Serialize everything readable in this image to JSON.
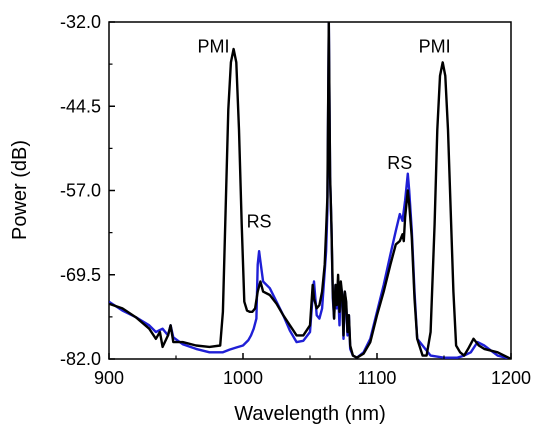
{
  "chart_data": {
    "type": "line",
    "xlabel": "Wavelength (nm)",
    "ylabel": "Power (dB)",
    "xlim": [
      900,
      1200
    ],
    "ylim": [
      -82.0,
      -32.0
    ],
    "x_ticks": [
      900,
      1000,
      1100,
      1200
    ],
    "y_ticks": [
      -82.0,
      -69.5,
      -57.0,
      -44.5,
      -32.0
    ],
    "x_tick_labels": [
      "900",
      "1000",
      "1100",
      "1200"
    ],
    "y_tick_labels": [
      "-82.0",
      "-69.5",
      "-57.0",
      "-44.5",
      "-32.0"
    ],
    "grid": false,
    "annotations": [
      {
        "text": "PMI",
        "x": 978,
        "y": -36.5
      },
      {
        "text": "RS",
        "x": 1012,
        "y": -62.5
      },
      {
        "text": "RS",
        "x": 1117,
        "y": -53.8
      },
      {
        "text": "PMI",
        "x": 1143,
        "y": -36.5
      }
    ],
    "series": [
      {
        "color": "#1f1fd6",
        "x": [
          900,
          910,
          920,
          930,
          935,
          940,
          944,
          946,
          948,
          955,
          965,
          975,
          985,
          990,
          995,
          1000,
          1004,
          1006,
          1008,
          1010,
          1011,
          1012,
          1013,
          1015,
          1020,
          1025,
          1030,
          1035,
          1040,
          1045,
          1050,
          1052,
          1053,
          1055,
          1057,
          1059,
          1061,
          1062,
          1063,
          1064,
          1065,
          1066,
          1067,
          1068,
          1069,
          1070,
          1071,
          1072,
          1073,
          1074,
          1075,
          1076,
          1077,
          1078,
          1079,
          1080,
          1082,
          1085,
          1090,
          1095,
          1100,
          1105,
          1110,
          1114,
          1117,
          1119,
          1121,
          1123,
          1124,
          1126,
          1128,
          1130,
          1140,
          1150,
          1160,
          1165,
          1170,
          1175,
          1180,
          1190,
          1200
        ],
        "values": [
          -73.5,
          -74.8,
          -75.8,
          -77.0,
          -78.0,
          -77.5,
          -78.5,
          -77.0,
          -78.8,
          -79.8,
          -80.5,
          -81.0,
          -81.0,
          -80.6,
          -80.3,
          -80.0,
          -79.2,
          -78.5,
          -77.5,
          -76.0,
          -68.0,
          -66.0,
          -67.5,
          -70.5,
          -71.5,
          -73.5,
          -75.5,
          -77.8,
          -79.5,
          -79.3,
          -78.0,
          -72.5,
          -70.5,
          -75.5,
          -76.0,
          -74.5,
          -69.0,
          -66.0,
          -60.0,
          -32.0,
          -55.0,
          -62.0,
          -73.0,
          -76.0,
          -71.0,
          -74.5,
          -72.0,
          -77.0,
          -71.0,
          -72.5,
          -79.0,
          -72.0,
          -74.0,
          -78.5,
          -75.5,
          -80.5,
          -81.5,
          -81.8,
          -81.0,
          -79.0,
          -75.0,
          -71.0,
          -66.5,
          -63.0,
          -60.5,
          -61.5,
          -58.5,
          -54.5,
          -57.0,
          -63.0,
          -72.0,
          -79.0,
          -81.5,
          -81.8,
          -81.8,
          -81.5,
          -81.0,
          -79.5,
          -80.0,
          -81.5,
          -82.0
        ]
      },
      {
        "color": "#000000",
        "x": [
          900,
          910,
          920,
          930,
          935,
          938,
          940,
          944,
          946,
          948,
          955,
          965,
          975,
          983,
          985,
          987,
          989,
          991,
          993,
          995,
          997,
          999,
          1001,
          1003,
          1005,
          1007,
          1009,
          1011,
          1013,
          1015,
          1020,
          1025,
          1030,
          1035,
          1040,
          1045,
          1050,
          1052,
          1053,
          1055,
          1057,
          1059,
          1061,
          1062,
          1063,
          1064,
          1065,
          1066,
          1067,
          1068,
          1069,
          1070,
          1071,
          1072,
          1073,
          1074,
          1075,
          1076,
          1077,
          1078,
          1079,
          1080,
          1082,
          1085,
          1090,
          1095,
          1100,
          1105,
          1110,
          1114,
          1117,
          1119,
          1120,
          1121,
          1123,
          1124,
          1126,
          1128,
          1130,
          1134,
          1137,
          1140,
          1143,
          1145,
          1147,
          1149,
          1151,
          1153,
          1155,
          1157,
          1159,
          1162,
          1165,
          1168,
          1172,
          1176,
          1180,
          1190,
          1200
        ],
        "values": [
          -73.8,
          -74.5,
          -75.8,
          -77.5,
          -79.0,
          -78.0,
          -80.2,
          -78.5,
          -77.0,
          -79.5,
          -79.5,
          -80.0,
          -80.2,
          -80.0,
          -75.0,
          -60.0,
          -45.0,
          -38.0,
          -36.0,
          -38.0,
          -48.0,
          -62.0,
          -73.5,
          -74.8,
          -75.0,
          -75.0,
          -74.5,
          -72.0,
          -70.5,
          -72.0,
          -72.5,
          -73.8,
          -75.5,
          -77.0,
          -78.5,
          -78.5,
          -77.0,
          -71.0,
          -73.0,
          -74.5,
          -74.0,
          -72.0,
          -68.0,
          -63.0,
          -58.0,
          -32.0,
          -55.0,
          -62.0,
          -72.0,
          -76.0,
          -71.0,
          -74.0,
          -69.5,
          -75.0,
          -70.5,
          -72.5,
          -78.5,
          -72.0,
          -73.5,
          -78.0,
          -75.5,
          -80.0,
          -81.5,
          -81.8,
          -81.2,
          -79.5,
          -75.5,
          -72.0,
          -68.0,
          -65.0,
          -64.5,
          -63.5,
          -64.5,
          -61.0,
          -57.0,
          -59.0,
          -64.0,
          -73.0,
          -79.0,
          -81.5,
          -81.5,
          -78.0,
          -62.0,
          -48.0,
          -40.0,
          -38.0,
          -40.0,
          -48.0,
          -60.0,
          -72.0,
          -80.0,
          -81.0,
          -81.5,
          -80.5,
          -79.0,
          -80.0,
          -80.5,
          -81.0,
          -82.0
        ]
      }
    ]
  }
}
